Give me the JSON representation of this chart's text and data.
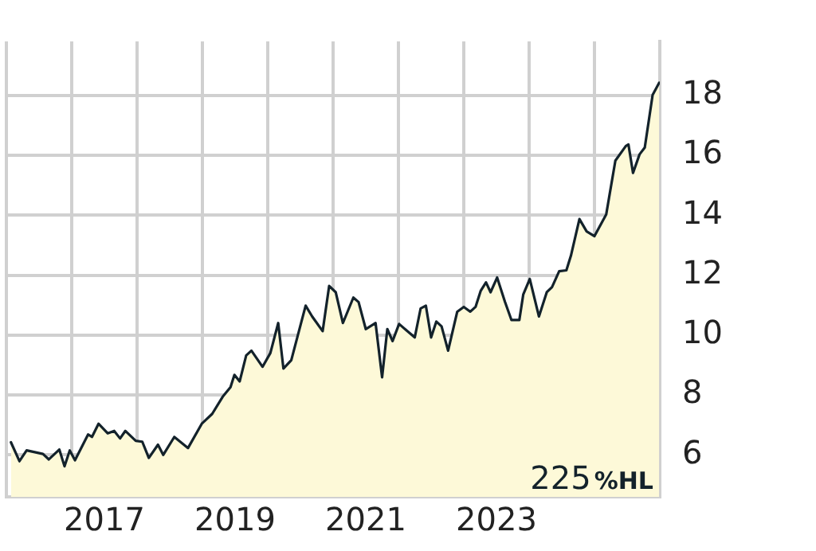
{
  "chart_data": {
    "type": "area",
    "grid": true,
    "legend": false,
    "marker": "none",
    "line_style": "solid",
    "x": [
      2016.07,
      2016.2,
      2016.31,
      2016.56,
      2016.65,
      2016.81,
      2016.89,
      2016.97,
      2017.05,
      2017.25,
      2017.31,
      2017.41,
      2017.55,
      2017.65,
      2017.74,
      2017.82,
      2017.98,
      2018.08,
      2018.18,
      2018.32,
      2018.4,
      2018.57,
      2018.78,
      2018.99,
      2019.15,
      2019.31,
      2019.43,
      2019.49,
      2019.57,
      2019.67,
      2019.75,
      2019.92,
      2020.04,
      2020.16,
      2020.24,
      2020.36,
      2020.58,
      2020.68,
      2020.84,
      2020.94,
      2021.04,
      2021.15,
      2021.31,
      2021.39,
      2021.5,
      2021.65,
      2021.75,
      2021.83,
      2021.91,
      2022.01,
      2022.25,
      2022.34,
      2022.42,
      2022.5,
      2022.58,
      2022.66,
      2022.76,
      2022.9,
      2023.0,
      2023.1,
      2023.18,
      2023.26,
      2023.34,
      2023.41,
      2023.51,
      2023.63,
      2023.73,
      2023.85,
      2023.91,
      2024.01,
      2024.15,
      2024.27,
      2024.35,
      2024.46,
      2024.57,
      2024.64,
      2024.77,
      2024.88,
      2025.0,
      2025.18,
      2025.32,
      2025.48,
      2025.52,
      2025.59,
      2025.69,
      2025.77,
      2025.89,
      2025.99
    ],
    "series": [
      {
        "color": "#13222b",
        "values": [
          6.42,
          5.79,
          6.15,
          6.03,
          5.85,
          6.18,
          5.62,
          6.15,
          5.82,
          6.68,
          6.6,
          7.04,
          6.72,
          6.8,
          6.55,
          6.8,
          6.47,
          6.44,
          5.9,
          6.34,
          6.0,
          6.6,
          6.23,
          7.04,
          7.37,
          7.94,
          8.26,
          8.67,
          8.45,
          9.32,
          9.48,
          8.94,
          9.4,
          10.4,
          8.88,
          9.16,
          10.98,
          10.62,
          10.13,
          11.64,
          11.43,
          10.4,
          11.25,
          11.1,
          10.2,
          10.4,
          8.59,
          10.2,
          9.8,
          10.37,
          9.92,
          10.89,
          10.98,
          9.92,
          10.45,
          10.29,
          9.48,
          10.78,
          10.94,
          10.78,
          10.94,
          11.48,
          11.76,
          11.43,
          11.92,
          11.11,
          10.5,
          10.5,
          11.35,
          11.87,
          10.62,
          11.43,
          11.6,
          12.13,
          12.16,
          12.65,
          13.87,
          13.46,
          13.3,
          14.03,
          15.82,
          16.31,
          16.36,
          15.41,
          16.03,
          16.26,
          18.01,
          18.42
        ]
      }
    ],
    "xlim": [
      2016,
      2026
    ],
    "xticks": [
      {
        "value": 2016,
        "label": null
      },
      {
        "value": 2017,
        "label": null
      },
      {
        "value": 2017.5,
        "label": "2017"
      },
      {
        "value": 2018,
        "label": null
      },
      {
        "value": 2019,
        "label": null
      },
      {
        "value": 2019.5,
        "label": "2019"
      },
      {
        "value": 2020,
        "label": null
      },
      {
        "value": 2021,
        "label": null
      },
      {
        "value": 2021.5,
        "label": "2021"
      },
      {
        "value": 2022,
        "label": null
      },
      {
        "value": 2023,
        "label": null
      },
      {
        "value": 2023.5,
        "label": "2023"
      },
      {
        "value": 2024,
        "label": null
      },
      {
        "value": 2025,
        "label": null
      },
      {
        "value": 2026,
        "label": null
      }
    ],
    "ylim": [
      4.6,
      19.8
    ],
    "yticks": [
      6,
      8,
      10,
      12,
      14,
      16,
      18
    ],
    "annotations": [
      "225",
      "%HL"
    ]
  }
}
